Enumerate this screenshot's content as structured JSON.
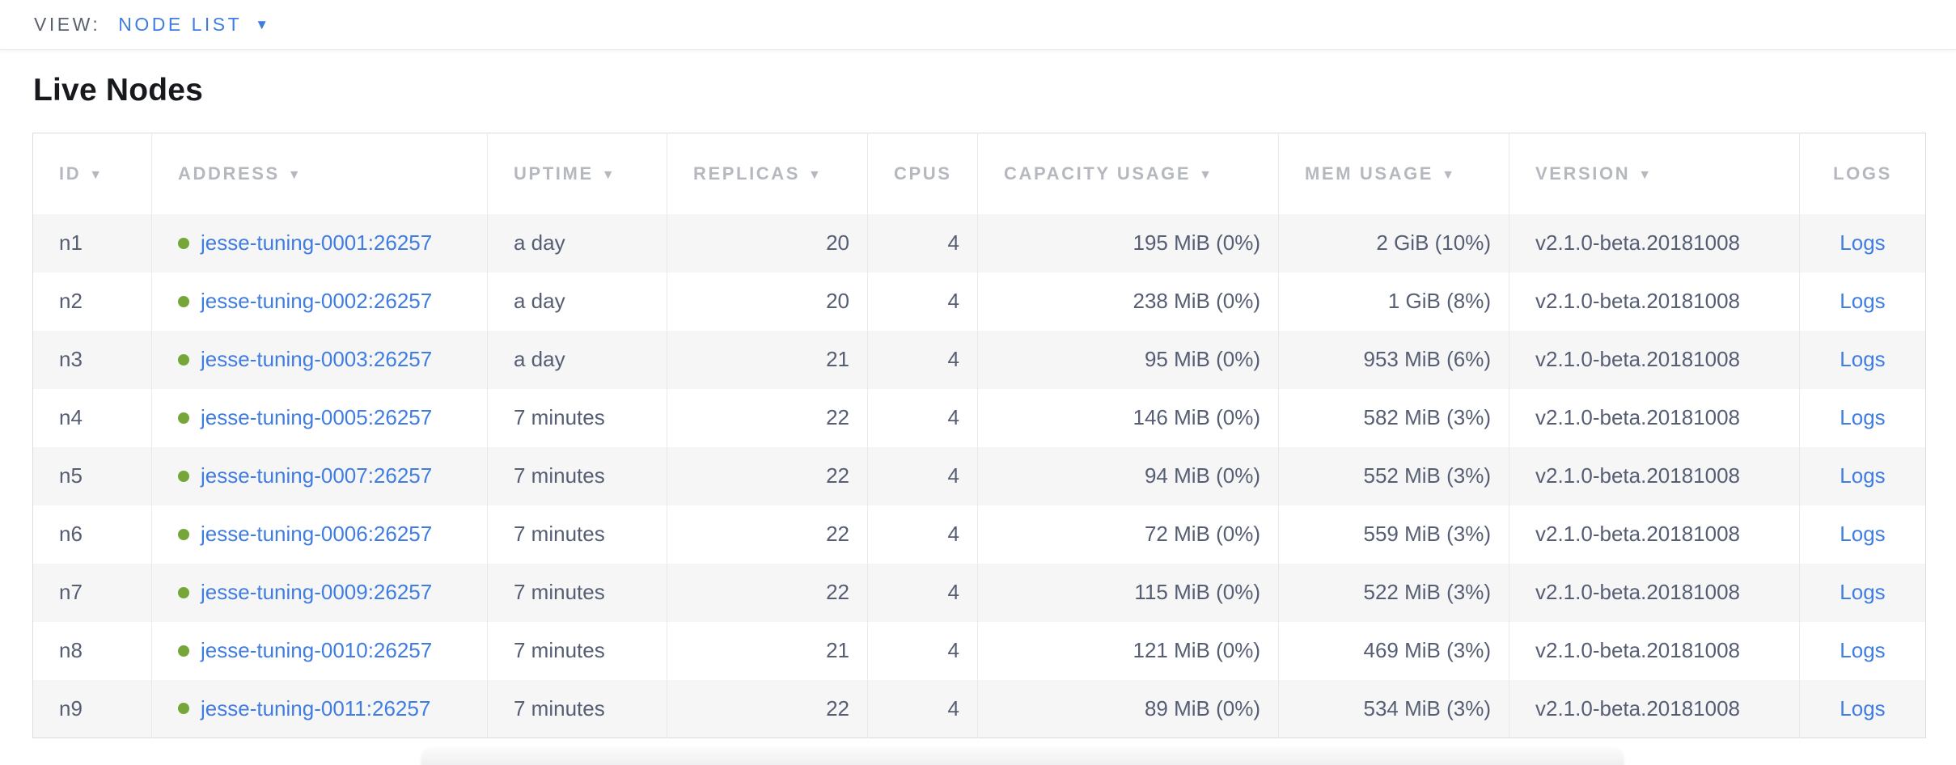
{
  "view_bar": {
    "label": "VIEW:",
    "selected": "NODE LIST"
  },
  "icons": {
    "dropdown_caret": "▼",
    "sort_caret": "▼",
    "live_dot": "green-circle"
  },
  "page": {
    "title": "Live Nodes"
  },
  "colors": {
    "link_blue": "#3f7de2",
    "live_green": "#76a63a",
    "header_gray": "#b5b8be",
    "cell_text": "#555e72",
    "row_stripe": "#f6f6f7",
    "border": "#e9e9eb"
  },
  "table": {
    "columns": [
      {
        "label": "ID",
        "sortable": true
      },
      {
        "label": "ADDRESS",
        "sortable": true
      },
      {
        "label": "UPTIME",
        "sortable": true
      },
      {
        "label": "REPLICAS",
        "sortable": true
      },
      {
        "label": "CPUS",
        "sortable": false
      },
      {
        "label": "CAPACITY USAGE",
        "sortable": true
      },
      {
        "label": "MEM USAGE",
        "sortable": true
      },
      {
        "label": "VERSION",
        "sortable": true
      },
      {
        "label": "LOGS",
        "sortable": false
      }
    ],
    "rows": [
      {
        "id": "n1",
        "address": "jesse-tuning-0001:26257",
        "uptime": "a day",
        "replicas": "20",
        "cpus": "4",
        "capacity": "195 MiB (0%)",
        "mem": "2 GiB (10%)",
        "version": "v2.1.0-beta.20181008",
        "logs_label": "Logs"
      },
      {
        "id": "n2",
        "address": "jesse-tuning-0002:26257",
        "uptime": "a day",
        "replicas": "20",
        "cpus": "4",
        "capacity": "238 MiB (0%)",
        "mem": "1 GiB (8%)",
        "version": "v2.1.0-beta.20181008",
        "logs_label": "Logs"
      },
      {
        "id": "n3",
        "address": "jesse-tuning-0003:26257",
        "uptime": "a day",
        "replicas": "21",
        "cpus": "4",
        "capacity": "95 MiB (0%)",
        "mem": "953 MiB (6%)",
        "version": "v2.1.0-beta.20181008",
        "logs_label": "Logs"
      },
      {
        "id": "n4",
        "address": "jesse-tuning-0005:26257",
        "uptime": "7 minutes",
        "replicas": "22",
        "cpus": "4",
        "capacity": "146 MiB (0%)",
        "mem": "582 MiB (3%)",
        "version": "v2.1.0-beta.20181008",
        "logs_label": "Logs"
      },
      {
        "id": "n5",
        "address": "jesse-tuning-0007:26257",
        "uptime": "7 minutes",
        "replicas": "22",
        "cpus": "4",
        "capacity": "94 MiB (0%)",
        "mem": "552 MiB (3%)",
        "version": "v2.1.0-beta.20181008",
        "logs_label": "Logs"
      },
      {
        "id": "n6",
        "address": "jesse-tuning-0006:26257",
        "uptime": "7 minutes",
        "replicas": "22",
        "cpus": "4",
        "capacity": "72 MiB (0%)",
        "mem": "559 MiB (3%)",
        "version": "v2.1.0-beta.20181008",
        "logs_label": "Logs"
      },
      {
        "id": "n7",
        "address": "jesse-tuning-0009:26257",
        "uptime": "7 minutes",
        "replicas": "22",
        "cpus": "4",
        "capacity": "115 MiB (0%)",
        "mem": "522 MiB (3%)",
        "version": "v2.1.0-beta.20181008",
        "logs_label": "Logs"
      },
      {
        "id": "n8",
        "address": "jesse-tuning-0010:26257",
        "uptime": "7 minutes",
        "replicas": "21",
        "cpus": "4",
        "capacity": "121 MiB (0%)",
        "mem": "469 MiB (3%)",
        "version": "v2.1.0-beta.20181008",
        "logs_label": "Logs"
      },
      {
        "id": "n9",
        "address": "jesse-tuning-0011:26257",
        "uptime": "7 minutes",
        "replicas": "22",
        "cpus": "4",
        "capacity": "89 MiB (0%)",
        "mem": "534 MiB (3%)",
        "version": "v2.1.0-beta.20181008",
        "logs_label": "Logs"
      }
    ]
  }
}
